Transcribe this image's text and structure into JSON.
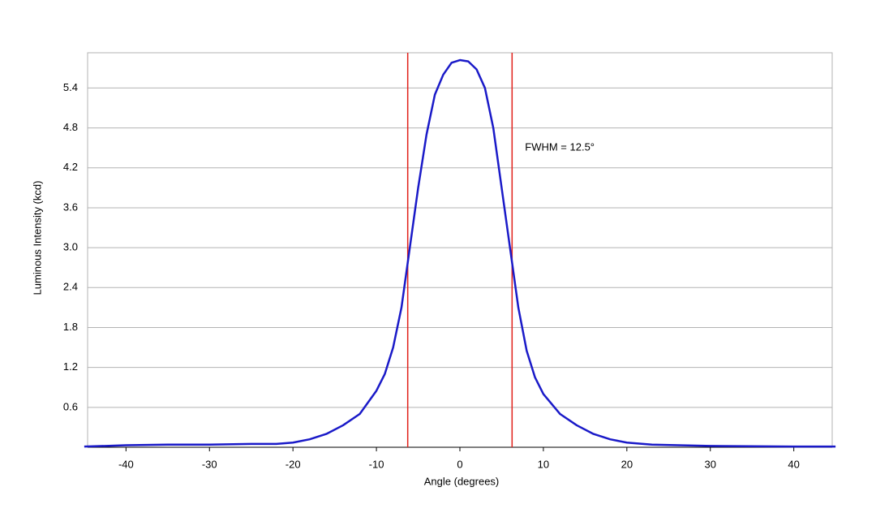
{
  "chart_data": {
    "type": "line",
    "x_label": "Angle (degrees)",
    "y_label": "Luminous Intensity (kcd)",
    "xlim": [
      -44.6,
      44.6
    ],
    "ylim": [
      0,
      5.93
    ],
    "xticks": [
      -40,
      -30,
      -20,
      -10,
      0,
      10,
      20,
      30,
      40
    ],
    "yticks": [
      0.6,
      1.2,
      1.8,
      2.4,
      {
        "value": 3,
        "label": "3.0"
      },
      3.6,
      4.2,
      4.8,
      5.4
    ],
    "grid": true,
    "x": [
      -45,
      -40,
      -35,
      -30,
      -25,
      -22,
      -20,
      -18,
      -16,
      -14,
      -12,
      -10,
      -9,
      -8,
      -7,
      -6,
      -5,
      -4,
      -3,
      -2,
      -1,
      0,
      1,
      2,
      3,
      4,
      5,
      6,
      7,
      8,
      9,
      10,
      12,
      14,
      16,
      18,
      20,
      23,
      30,
      40,
      45
    ],
    "series": [
      {
        "color": "#1a1ac8",
        "values": [
          0.01,
          0.03,
          0.04,
          0.04,
          0.05,
          0.05,
          0.07,
          0.12,
          0.2,
          0.33,
          0.5,
          0.85,
          1.1,
          1.5,
          2.1,
          3.0,
          3.9,
          4.7,
          5.3,
          5.6,
          5.78,
          5.82,
          5.8,
          5.68,
          5.4,
          4.8,
          3.9,
          3.0,
          2.1,
          1.45,
          1.05,
          0.8,
          0.5,
          0.33,
          0.2,
          0.12,
          0.07,
          0.04,
          0.02,
          0.01,
          0.01
        ]
      }
    ],
    "vlines": {
      "color": "#e0201a",
      "x": [
        -6.25,
        6.25
      ]
    },
    "annotations": [
      {
        "text": "FWHM = 12.5°",
        "x": 7.8,
        "y": 4.5
      }
    ]
  }
}
